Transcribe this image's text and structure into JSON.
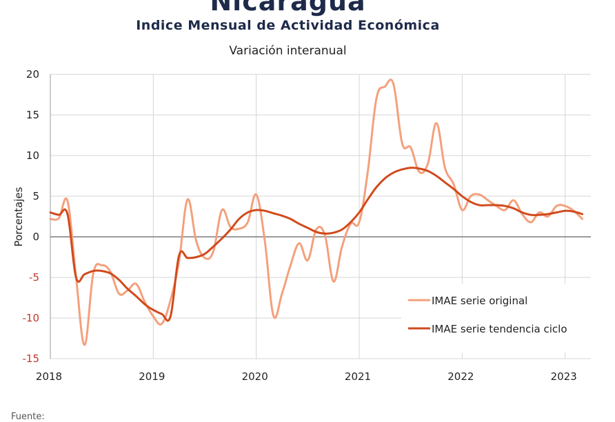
{
  "header": {
    "title": "Nicaragua",
    "subtitle": "Indice Mensual de  Actividad Económica",
    "variation": "Variación interanual"
  },
  "footer": {
    "source_label": "Fuente:"
  },
  "colors": {
    "original": "#f4a07c",
    "trend": "#d04a1c",
    "negative_tick": "#c0392b",
    "positive_tick": "#222222"
  },
  "chart_data": {
    "type": "line",
    "ylabel": "Porcentajes",
    "xlabel": "",
    "ylim": [
      -15,
      20
    ],
    "yticks": [
      20,
      15,
      10,
      5,
      0,
      -5,
      -10,
      -15
    ],
    "ytick_labels": [
      "20",
      "15",
      "10",
      "5",
      "0",
      "-5",
      "-10",
      "-15"
    ],
    "xlim": [
      2018,
      2023.25
    ],
    "xticks": [
      2018,
      2019,
      2020,
      2021,
      2022,
      2023
    ],
    "xtick_labels": [
      "2018",
      "2019",
      "2020",
      "2021",
      "2022",
      "2023"
    ],
    "grid": true,
    "legend_position": "bottom-right",
    "series": [
      {
        "name": "IMAE serie original",
        "x": [
          2018.0,
          2018.083,
          2018.167,
          2018.25,
          2018.333,
          2018.417,
          2018.5,
          2018.583,
          2018.667,
          2018.75,
          2018.833,
          2018.917,
          2019.0,
          2019.083,
          2019.167,
          2019.25,
          2019.333,
          2019.417,
          2019.5,
          2019.583,
          2019.667,
          2019.75,
          2019.833,
          2019.917,
          2020.0,
          2020.083,
          2020.167,
          2020.25,
          2020.333,
          2020.417,
          2020.5,
          2020.583,
          2020.667,
          2020.75,
          2020.833,
          2020.917,
          2021.0,
          2021.083,
          2021.167,
          2021.25,
          2021.333,
          2021.417,
          2021.5,
          2021.583,
          2021.667,
          2021.75,
          2021.833,
          2021.917,
          2022.0,
          2022.083,
          2022.167,
          2022.25,
          2022.333,
          2022.417,
          2022.5,
          2022.583,
          2022.667,
          2022.75,
          2022.833,
          2022.917,
          2023.0,
          2023.083,
          2023.167
        ],
        "values": [
          2.2,
          2.3,
          4.4,
          -5.0,
          -13.3,
          -4.5,
          -3.5,
          -4.3,
          -7.0,
          -6.6,
          -5.8,
          -8.0,
          -9.8,
          -10.7,
          -7.8,
          -3.0,
          4.6,
          -0.5,
          -2.6,
          -1.8,
          3.3,
          1.2,
          1.0,
          1.8,
          5.2,
          -0.5,
          -9.7,
          -7.0,
          -3.5,
          -0.8,
          -2.9,
          0.9,
          0.2,
          -5.5,
          -1.2,
          1.6,
          1.8,
          8.0,
          17.0,
          18.5,
          18.8,
          11.5,
          11.0,
          8.0,
          9.0,
          14.0,
          8.5,
          6.5,
          3.3,
          5.0,
          5.2,
          4.5,
          3.8,
          3.3,
          4.5,
          2.8,
          1.8,
          3.0,
          2.5,
          3.8,
          3.8,
          3.2,
          2.2
        ]
      },
      {
        "name": "IMAE serie  tendencia ciclo",
        "x": [
          2018.0,
          2018.083,
          2018.167,
          2018.25,
          2018.333,
          2018.417,
          2018.5,
          2018.583,
          2018.667,
          2018.75,
          2018.833,
          2018.917,
          2019.0,
          2019.083,
          2019.167,
          2019.25,
          2019.333,
          2019.417,
          2019.5,
          2019.583,
          2019.667,
          2019.75,
          2019.833,
          2019.917,
          2020.0,
          2020.083,
          2020.167,
          2020.25,
          2020.333,
          2020.417,
          2020.5,
          2020.583,
          2020.667,
          2020.75,
          2020.833,
          2020.917,
          2021.0,
          2021.083,
          2021.167,
          2021.25,
          2021.333,
          2021.417,
          2021.5,
          2021.583,
          2021.667,
          2021.75,
          2021.833,
          2021.917,
          2022.0,
          2022.083,
          2022.167,
          2022.25,
          2022.333,
          2022.417,
          2022.5,
          2022.583,
          2022.667,
          2022.75,
          2022.833,
          2022.917,
          2023.0,
          2023.083,
          2023.167
        ],
        "values": [
          3.0,
          2.7,
          2.8,
          -5.0,
          -4.6,
          -4.2,
          -4.2,
          -4.5,
          -5.3,
          -6.4,
          -7.3,
          -8.3,
          -9.0,
          -9.5,
          -9.8,
          -2.3,
          -2.6,
          -2.5,
          -2.1,
          -1.2,
          -0.2,
          0.9,
          2.2,
          3.0,
          3.3,
          3.2,
          2.9,
          2.6,
          2.2,
          1.6,
          1.1,
          0.6,
          0.4,
          0.5,
          0.9,
          1.8,
          3.0,
          4.6,
          6.1,
          7.2,
          7.9,
          8.3,
          8.5,
          8.4,
          8.1,
          7.5,
          6.7,
          5.9,
          5.0,
          4.3,
          3.9,
          3.9,
          3.9,
          3.8,
          3.5,
          3.0,
          2.7,
          2.7,
          2.8,
          3.0,
          3.2,
          3.1,
          2.8
        ]
      }
    ]
  }
}
